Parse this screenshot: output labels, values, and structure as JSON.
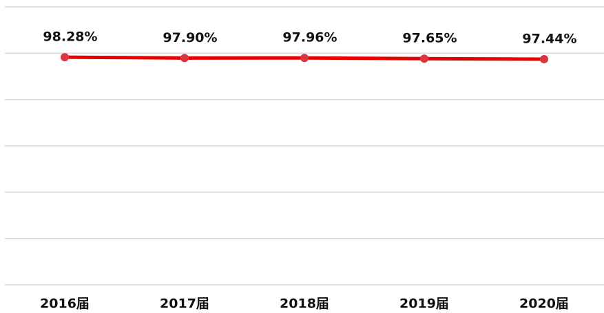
{
  "chart_data": {
    "type": "line",
    "categories": [
      "2016届",
      "2017届",
      "2018届",
      "2019届",
      "2020届"
    ],
    "values": [
      98.28,
      97.9,
      97.96,
      97.65,
      97.44
    ],
    "value_labels": [
      "98.28%",
      "97.90%",
      "97.96%",
      "97.65%",
      "97.44%"
    ],
    "color": "#e60000",
    "marker_color": "#d9363e",
    "ylim": [
      0,
      120
    ],
    "yticks": [
      0,
      20,
      40,
      60,
      80,
      100,
      120
    ],
    "grid": true
  }
}
